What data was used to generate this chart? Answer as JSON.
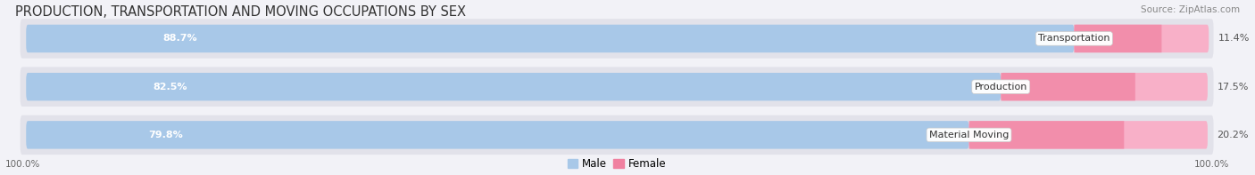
{
  "title": "PRODUCTION, TRANSPORTATION AND MOVING OCCUPATIONS BY SEX",
  "source": "Source: ZipAtlas.com",
  "categories": [
    "Transportation",
    "Production",
    "Material Moving"
  ],
  "male_values": [
    88.7,
    82.5,
    79.8
  ],
  "female_values": [
    11.4,
    17.5,
    20.2
  ],
  "male_color": "#a8c8e8",
  "female_color": "#f080a0",
  "female_light_color": "#f8b0c8",
  "male_label": "Male",
  "female_label": "Female",
  "bar_height": 0.58,
  "background_color": "#f2f2f7",
  "bar_bg_color": "#e2e2ea",
  "axis_label_left": "100.0%",
  "axis_label_right": "100.0%",
  "title_fontsize": 10.5,
  "source_fontsize": 7.5,
  "label_fontsize": 8,
  "cat_fontsize": 8
}
